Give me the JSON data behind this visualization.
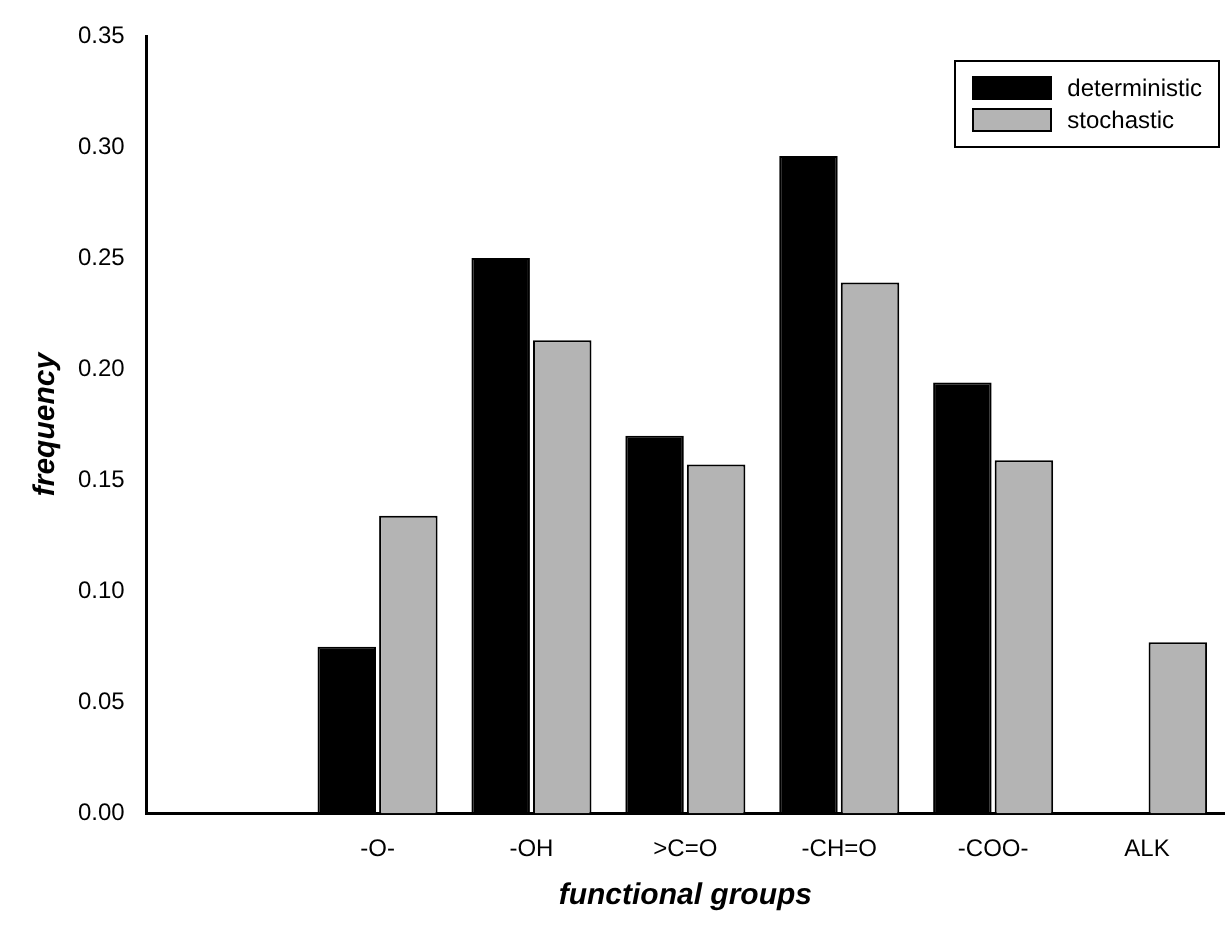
{
  "chart_data": {
    "type": "bar",
    "xlabel": "functional groups",
    "ylabel": "frequency",
    "categories": [
      null,
      "-O-",
      "-OH",
      ">C=O",
      "-CH=O",
      "-COO-",
      "ALK"
    ],
    "series": [
      {
        "name": "deterministic",
        "color": "#000000",
        "values": [
          null,
          0.075,
          0.25,
          0.17,
          0.296,
          0.194,
          0
        ]
      },
      {
        "name": "stochastic",
        "color": "#b4b4b4",
        "values": [
          null,
          0.134,
          0.213,
          0.157,
          0.239,
          0.159,
          0.077
        ]
      }
    ],
    "ylim": [
      0,
      0.35
    ],
    "yticks": [
      {
        "value": 0,
        "label": "0.00"
      },
      {
        "value": 0.05,
        "label": "0.05"
      },
      {
        "value": 0.1,
        "label": "0.10"
      },
      {
        "value": 0.15,
        "label": "0.15"
      },
      {
        "value": 0.2,
        "label": "0.20"
      },
      {
        "value": 0.25,
        "label": "0.25"
      },
      {
        "value": 0.3,
        "label": "0.30"
      },
      {
        "value": 0.35,
        "label": "0.35"
      }
    ],
    "grid": false,
    "legend": "top right"
  }
}
